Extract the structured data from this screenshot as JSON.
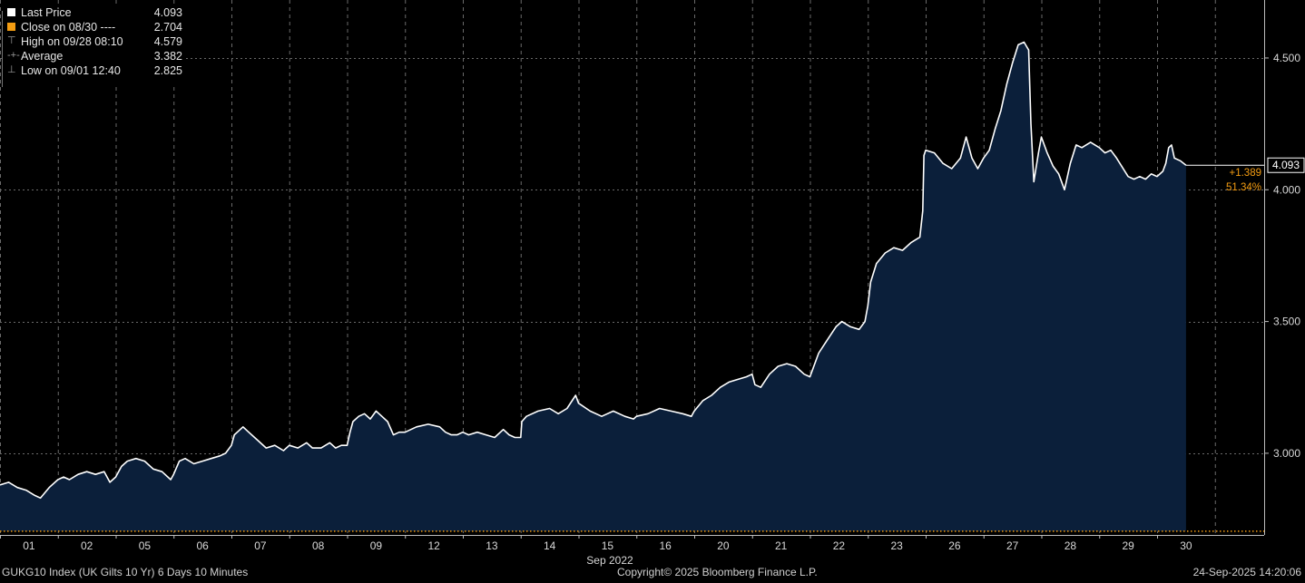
{
  "legend": {
    "items": [
      {
        "label": "Last Price",
        "value": "4.093",
        "marker": "white-square"
      },
      {
        "label": "Close on 08/30 ----",
        "value": "2.704",
        "marker": "orange-square"
      },
      {
        "label": "High on 09/28 08:10",
        "value": "4.579",
        "marker": "high-marker-icon"
      },
      {
        "label": "Average",
        "value": "3.382",
        "marker": "average-marker-icon"
      },
      {
        "label": "Low on 09/01 12:40",
        "value": "2.825",
        "marker": "low-marker-icon"
      }
    ]
  },
  "chart_data": {
    "type": "area",
    "title": "",
    "xlabel": "Sep 2022",
    "ylabel": "",
    "x_tick_labels": [
      "01",
      "02",
      "05",
      "06",
      "07",
      "08",
      "09",
      "12",
      "13",
      "14",
      "15",
      "16",
      "20",
      "21",
      "22",
      "23",
      "26",
      "27",
      "28",
      "29",
      "30"
    ],
    "y_ticks": [
      3.0,
      3.5,
      4.0,
      4.5
    ],
    "y_tick_labels": [
      "3.000",
      "3.500",
      "4.000",
      "4.500"
    ],
    "ylim": [
      2.69,
      4.72
    ],
    "grid": true,
    "reference_lines": [
      {
        "name": "Close on 08/30",
        "value": 2.704,
        "color": "#f39c12",
        "style": "dotted"
      }
    ],
    "series": [
      {
        "name": "Last Price",
        "color": "#ffffff",
        "fill": "#0b1f3a",
        "points": [
          [
            0.0,
            2.88
          ],
          [
            0.15,
            2.89
          ],
          [
            0.3,
            2.87
          ],
          [
            0.45,
            2.86
          ],
          [
            0.6,
            2.84
          ],
          [
            0.7,
            2.83
          ],
          [
            0.85,
            2.87
          ],
          [
            1.0,
            2.9
          ],
          [
            1.1,
            2.91
          ],
          [
            1.2,
            2.9
          ],
          [
            1.35,
            2.92
          ],
          [
            1.5,
            2.93
          ],
          [
            1.65,
            2.92
          ],
          [
            1.8,
            2.93
          ],
          [
            1.9,
            2.89
          ],
          [
            2.0,
            2.91
          ],
          [
            2.1,
            2.95
          ],
          [
            2.2,
            2.97
          ],
          [
            2.35,
            2.98
          ],
          [
            2.5,
            2.97
          ],
          [
            2.65,
            2.94
          ],
          [
            2.8,
            2.93
          ],
          [
            2.95,
            2.9
          ],
          [
            3.0,
            2.92
          ],
          [
            3.1,
            2.97
          ],
          [
            3.2,
            2.98
          ],
          [
            3.35,
            2.96
          ],
          [
            3.5,
            2.97
          ],
          [
            3.65,
            2.98
          ],
          [
            3.8,
            2.99
          ],
          [
            3.9,
            3.0
          ],
          [
            4.0,
            3.03
          ],
          [
            4.05,
            3.07
          ],
          [
            4.1,
            3.08
          ],
          [
            4.2,
            3.1
          ],
          [
            4.3,
            3.08
          ],
          [
            4.45,
            3.05
          ],
          [
            4.6,
            3.02
          ],
          [
            4.75,
            3.03
          ],
          [
            4.9,
            3.01
          ],
          [
            5.0,
            3.03
          ],
          [
            5.15,
            3.02
          ],
          [
            5.3,
            3.04
          ],
          [
            5.4,
            3.02
          ],
          [
            5.55,
            3.02
          ],
          [
            5.7,
            3.04
          ],
          [
            5.8,
            3.02
          ],
          [
            5.9,
            3.03
          ],
          [
            6.0,
            3.03
          ],
          [
            6.05,
            3.08
          ],
          [
            6.1,
            3.12
          ],
          [
            6.2,
            3.14
          ],
          [
            6.3,
            3.15
          ],
          [
            6.4,
            3.13
          ],
          [
            6.5,
            3.16
          ],
          [
            6.6,
            3.14
          ],
          [
            6.7,
            3.12
          ],
          [
            6.8,
            3.07
          ],
          [
            6.9,
            3.08
          ],
          [
            7.0,
            3.08
          ],
          [
            7.2,
            3.1
          ],
          [
            7.4,
            3.11
          ],
          [
            7.6,
            3.1
          ],
          [
            7.7,
            3.08
          ],
          [
            7.8,
            3.07
          ],
          [
            7.9,
            3.07
          ],
          [
            8.0,
            3.08
          ],
          [
            8.1,
            3.07
          ],
          [
            8.25,
            3.08
          ],
          [
            8.4,
            3.07
          ],
          [
            8.55,
            3.06
          ],
          [
            8.7,
            3.09
          ],
          [
            8.8,
            3.07
          ],
          [
            8.9,
            3.06
          ],
          [
            9.0,
            3.06
          ],
          [
            9.02,
            3.12
          ],
          [
            9.1,
            3.14
          ],
          [
            9.3,
            3.16
          ],
          [
            9.5,
            3.17
          ],
          [
            9.65,
            3.15
          ],
          [
            9.8,
            3.17
          ],
          [
            9.95,
            3.22
          ],
          [
            10.0,
            3.19
          ],
          [
            10.2,
            3.16
          ],
          [
            10.4,
            3.14
          ],
          [
            10.6,
            3.16
          ],
          [
            10.8,
            3.14
          ],
          [
            10.95,
            3.13
          ],
          [
            11.0,
            3.14
          ],
          [
            11.2,
            3.15
          ],
          [
            11.4,
            3.17
          ],
          [
            11.6,
            3.16
          ],
          [
            11.8,
            3.15
          ],
          [
            11.95,
            3.14
          ],
          [
            12.0,
            3.16
          ],
          [
            12.15,
            3.2
          ],
          [
            12.3,
            3.22
          ],
          [
            12.45,
            3.25
          ],
          [
            12.6,
            3.27
          ],
          [
            12.75,
            3.28
          ],
          [
            12.9,
            3.29
          ],
          [
            13.0,
            3.3
          ],
          [
            13.05,
            3.26
          ],
          [
            13.15,
            3.25
          ],
          [
            13.3,
            3.3
          ],
          [
            13.45,
            3.33
          ],
          [
            13.6,
            3.34
          ],
          [
            13.75,
            3.33
          ],
          [
            13.9,
            3.3
          ],
          [
            14.0,
            3.29
          ],
          [
            14.05,
            3.32
          ],
          [
            14.15,
            3.38
          ],
          [
            14.3,
            3.43
          ],
          [
            14.45,
            3.48
          ],
          [
            14.55,
            3.5
          ],
          [
            14.7,
            3.48
          ],
          [
            14.85,
            3.47
          ],
          [
            14.95,
            3.5
          ],
          [
            15.0,
            3.56
          ],
          [
            15.05,
            3.65
          ],
          [
            15.15,
            3.72
          ],
          [
            15.3,
            3.76
          ],
          [
            15.45,
            3.78
          ],
          [
            15.6,
            3.77
          ],
          [
            15.75,
            3.8
          ],
          [
            15.9,
            3.82
          ],
          [
            15.95,
            3.92
          ],
          [
            15.97,
            4.13
          ],
          [
            16.0,
            4.15
          ],
          [
            16.15,
            4.14
          ],
          [
            16.3,
            4.1
          ],
          [
            16.45,
            4.08
          ],
          [
            16.6,
            4.12
          ],
          [
            16.7,
            4.2
          ],
          [
            16.8,
            4.12
          ],
          [
            16.9,
            4.08
          ],
          [
            17.0,
            4.12
          ],
          [
            17.1,
            4.15
          ],
          [
            17.2,
            4.23
          ],
          [
            17.3,
            4.3
          ],
          [
            17.4,
            4.4
          ],
          [
            17.5,
            4.48
          ],
          [
            17.6,
            4.55
          ],
          [
            17.7,
            4.56
          ],
          [
            17.78,
            4.53
          ],
          [
            17.82,
            4.25
          ],
          [
            17.87,
            4.03
          ],
          [
            17.95,
            4.14
          ],
          [
            18.0,
            4.2
          ],
          [
            18.1,
            4.14
          ],
          [
            18.2,
            4.09
          ],
          [
            18.3,
            4.06
          ],
          [
            18.4,
            4.0
          ],
          [
            18.5,
            4.1
          ],
          [
            18.6,
            4.17
          ],
          [
            18.7,
            4.16
          ],
          [
            18.85,
            4.18
          ],
          [
            19.0,
            4.16
          ],
          [
            19.1,
            4.14
          ],
          [
            19.2,
            4.15
          ],
          [
            19.3,
            4.12
          ],
          [
            19.5,
            4.05
          ],
          [
            19.6,
            4.04
          ],
          [
            19.7,
            4.05
          ],
          [
            19.8,
            4.04
          ],
          [
            19.9,
            4.06
          ],
          [
            20.0,
            4.05
          ],
          [
            20.1,
            4.07
          ],
          [
            20.15,
            4.1
          ],
          [
            20.2,
            4.16
          ],
          [
            20.25,
            4.17
          ],
          [
            20.3,
            4.12
          ],
          [
            20.4,
            4.11
          ],
          [
            20.5,
            4.093
          ]
        ]
      }
    ],
    "last_value_label": "4.093",
    "change_label": "+1.389",
    "change_pct_label": "51.34%"
  },
  "footer": {
    "left": "GUKG10 Index (UK Gilts 10 Yr) 6 Days 10 Minutes",
    "center": "Copyright© 2025 Bloomberg Finance L.P.",
    "right": "24-Sep-2025 14:20:06"
  },
  "colors": {
    "background": "#000000",
    "grid": "#6a6a6a",
    "line": "#ffffff",
    "area_fill": "#0b1f3a",
    "close_line": "#f39c12",
    "axis_text": "#d8d8d8",
    "change_text": "#f39c12"
  }
}
